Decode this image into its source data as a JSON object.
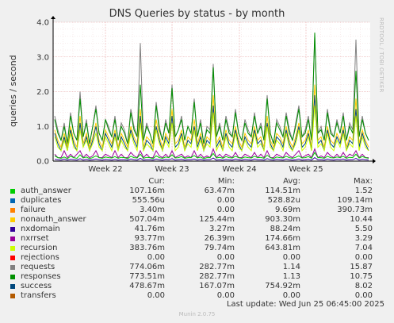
{
  "title": "DNS Queries by status - by month",
  "side_label": "RRDTOOL / TOBI OETIKER",
  "munin_version": "Munin 2.0.75",
  "last_update": "Last update: Wed Jun 25 06:45:00 2025",
  "legend_headers": {
    "cur": "Cur:",
    "min": "Min:",
    "avg": "Avg:",
    "max": "Max:"
  },
  "legend": [
    {
      "name": "auth_answer",
      "color": "#00cc00",
      "cur": "107.16m",
      "min": "63.47m",
      "avg": "114.51m",
      "max": "1.52"
    },
    {
      "name": "duplicates",
      "color": "#0066b3",
      "cur": "555.56u",
      "min": "0.00",
      "avg": "528.82u",
      "max": "109.14m"
    },
    {
      "name": "failure",
      "color": "#ff8000",
      "cur": "3.40m",
      "min": "0.00",
      "avg": "9.69m",
      "max": "390.73m"
    },
    {
      "name": "nonauth_answer",
      "color": "#ffcc00",
      "cur": "507.04m",
      "min": "125.44m",
      "avg": "903.30m",
      "max": "10.44"
    },
    {
      "name": "nxdomain",
      "color": "#330099",
      "cur": "41.76m",
      "min": "3.27m",
      "avg": "88.24m",
      "max": "5.50"
    },
    {
      "name": "nxrrset",
      "color": "#990099",
      "cur": "93.77m",
      "min": "26.39m",
      "avg": "174.66m",
      "max": "3.29"
    },
    {
      "name": "recursion",
      "color": "#ccff00",
      "cur": "383.76m",
      "min": "79.74m",
      "avg": "643.81m",
      "max": "7.04"
    },
    {
      "name": "rejections",
      "color": "#ff0000",
      "cur": "0.00",
      "min": "0.00",
      "avg": "0.00",
      "max": "0.00"
    },
    {
      "name": "requests",
      "color": "#808080",
      "cur": "774.06m",
      "min": "282.77m",
      "avg": "1.14",
      "max": "15.87"
    },
    {
      "name": "responses",
      "color": "#008f00",
      "cur": "773.51m",
      "min": "282.77m",
      "avg": "1.13",
      "max": "10.75"
    },
    {
      "name": "success",
      "color": "#00487d",
      "cur": "478.67m",
      "min": "167.07m",
      "avg": "754.92m",
      "max": "8.02"
    },
    {
      "name": "transfers",
      "color": "#b35a00",
      "cur": "0.00",
      "min": "0.00",
      "avg": "0.00",
      "max": "0.00"
    }
  ],
  "chart_data": {
    "type": "line",
    "title": "DNS Queries by status - by month",
    "ylabel": "queries / second",
    "ylim": [
      0,
      4.0
    ],
    "yticks": [
      "0.0",
      "1.0",
      "2.0",
      "3.0",
      "4.0"
    ],
    "xticks": [
      "Week 22",
      "Week 23",
      "Week 24",
      "Week 25"
    ],
    "grid": true,
    "series": [
      {
        "name": "requests",
        "color": "#808080",
        "values": [
          1.3,
          0.9,
          0.6,
          1.1,
          0.5,
          1.4,
          0.8,
          0.6,
          2.0,
          0.7,
          1.2,
          0.5,
          1.0,
          1.6,
          0.8,
          0.6,
          1.2,
          1.0,
          0.7,
          1.3,
          0.6,
          1.1,
          0.9,
          0.5,
          1.5,
          1.0,
          0.7,
          3.4,
          0.6,
          1.1,
          0.8,
          0.5,
          1.7,
          1.0,
          0.6,
          1.2,
          0.8,
          2.2,
          0.7,
          0.9,
          1.3,
          0.6,
          1.0,
          0.8,
          1.8,
          0.7,
          1.2,
          0.5,
          1.0,
          0.9,
          2.8,
          0.7,
          1.1,
          0.6,
          1.3,
          0.9,
          0.7,
          1.5,
          0.8,
          0.6,
          1.2,
          0.9,
          0.7,
          1.4,
          0.8,
          1.1,
          0.6,
          1.9,
          0.8,
          0.5,
          1.2,
          1.0,
          0.7,
          1.4,
          0.9,
          0.6,
          1.1,
          1.6,
          0.7,
          0.9,
          1.3,
          0.6,
          3.6,
          0.8,
          1.0,
          0.6,
          1.5,
          0.9,
          0.7,
          1.2,
          0.8,
          1.4,
          0.6,
          1.1,
          0.9,
          3.5,
          0.7,
          1.3,
          0.8,
          0.6
        ]
      },
      {
        "name": "responses",
        "color": "#008f00",
        "values": [
          1.2,
          0.8,
          0.6,
          1.0,
          0.5,
          1.3,
          0.8,
          0.6,
          1.8,
          0.7,
          1.1,
          0.5,
          1.0,
          1.5,
          0.8,
          0.6,
          1.2,
          0.9,
          0.7,
          1.2,
          0.6,
          1.0,
          0.8,
          0.5,
          1.4,
          0.9,
          0.7,
          2.2,
          0.6,
          1.0,
          0.8,
          0.5,
          1.6,
          0.9,
          0.6,
          1.1,
          0.8,
          2.1,
          0.7,
          0.9,
          1.2,
          0.6,
          1.0,
          0.8,
          1.7,
          0.7,
          1.1,
          0.5,
          0.9,
          0.8,
          2.7,
          0.7,
          1.0,
          0.6,
          1.2,
          0.8,
          0.7,
          1.4,
          0.8,
          0.6,
          1.1,
          0.8,
          0.7,
          1.3,
          0.8,
          1.0,
          0.6,
          1.8,
          0.8,
          0.5,
          1.1,
          0.9,
          0.7,
          1.3,
          0.8,
          0.6,
          1.0,
          1.5,
          0.7,
          0.8,
          1.2,
          0.6,
          3.7,
          0.8,
          0.9,
          0.6,
          1.4,
          0.8,
          0.7,
          1.1,
          0.8,
          1.3,
          0.6,
          1.0,
          0.8,
          2.6,
          0.7,
          1.2,
          0.8,
          0.6
        ]
      },
      {
        "name": "nonauth_answer",
        "color": "#ffcc00",
        "values": [
          0.9,
          0.6,
          0.4,
          0.8,
          0.4,
          1.0,
          0.6,
          0.4,
          1.3,
          0.5,
          0.8,
          0.4,
          0.7,
          1.1,
          0.6,
          0.4,
          0.9,
          0.7,
          0.5,
          0.9,
          0.4,
          0.8,
          0.6,
          0.4,
          1.0,
          0.7,
          0.5,
          1.5,
          0.4,
          0.7,
          0.6,
          0.4,
          1.2,
          0.7,
          0.4,
          0.8,
          0.6,
          1.5,
          0.5,
          0.6,
          0.9,
          0.4,
          0.7,
          0.6,
          1.2,
          0.5,
          0.8,
          0.4,
          0.7,
          0.6,
          1.9,
          0.5,
          0.7,
          0.4,
          0.9,
          0.6,
          0.5,
          1.0,
          0.6,
          0.4,
          0.8,
          0.6,
          0.5,
          1.0,
          0.6,
          0.7,
          0.4,
          1.3,
          0.6,
          0.4,
          0.8,
          0.7,
          0.5,
          1.0,
          0.6,
          0.4,
          0.7,
          1.1,
          0.5,
          0.6,
          0.9,
          0.4,
          2.2,
          0.6,
          0.7,
          0.4,
          1.0,
          0.6,
          0.5,
          0.8,
          0.6,
          1.0,
          0.4,
          0.7,
          0.6,
          1.8,
          0.5,
          0.9,
          0.6,
          0.4
        ]
      },
      {
        "name": "success",
        "color": "#00487d",
        "values": [
          0.8,
          0.5,
          0.3,
          0.7,
          0.3,
          0.9,
          0.5,
          0.3,
          1.1,
          0.4,
          0.7,
          0.3,
          0.6,
          1.0,
          0.5,
          0.3,
          0.8,
          0.6,
          0.4,
          0.8,
          0.3,
          0.7,
          0.5,
          0.3,
          0.9,
          0.6,
          0.4,
          1.3,
          0.3,
          0.6,
          0.5,
          0.3,
          1.0,
          0.6,
          0.3,
          0.7,
          0.5,
          1.3,
          0.4,
          0.5,
          0.8,
          0.3,
          0.6,
          0.5,
          1.0,
          0.4,
          0.7,
          0.3,
          0.6,
          0.5,
          1.6,
          0.4,
          0.6,
          0.3,
          0.8,
          0.5,
          0.4,
          0.9,
          0.5,
          0.3,
          0.7,
          0.5,
          0.4,
          0.9,
          0.5,
          0.6,
          0.3,
          1.1,
          0.5,
          0.3,
          0.7,
          0.6,
          0.4,
          0.9,
          0.5,
          0.3,
          0.6,
          1.0,
          0.4,
          0.5,
          0.8,
          0.3,
          1.9,
          0.5,
          0.6,
          0.3,
          0.9,
          0.5,
          0.4,
          0.7,
          0.5,
          0.9,
          0.3,
          0.6,
          0.5,
          1.5,
          0.4,
          0.8,
          0.5,
          0.3
        ]
      },
      {
        "name": "recursion",
        "color": "#ccff00",
        "values": [
          0.7,
          0.4,
          0.3,
          0.6,
          0.3,
          0.8,
          0.4,
          0.3,
          0.9,
          0.4,
          0.6,
          0.3,
          0.5,
          0.8,
          0.4,
          0.3,
          0.7,
          0.5,
          0.3,
          0.7,
          0.3,
          0.6,
          0.4,
          0.3,
          0.8,
          0.5,
          0.3,
          1.1,
          0.3,
          0.5,
          0.4,
          0.3,
          0.9,
          0.5,
          0.3,
          0.6,
          0.4,
          1.1,
          0.3,
          0.4,
          0.7,
          0.3,
          0.5,
          0.4,
          0.9,
          0.3,
          0.6,
          0.3,
          0.5,
          0.4,
          1.4,
          0.3,
          0.5,
          0.3,
          0.7,
          0.4,
          0.3,
          0.8,
          0.4,
          0.3,
          0.6,
          0.4,
          0.3,
          0.8,
          0.4,
          0.5,
          0.3,
          1.0,
          0.4,
          0.3,
          0.6,
          0.5,
          0.3,
          0.8,
          0.4,
          0.3,
          0.5,
          0.9,
          0.3,
          0.4,
          0.7,
          0.3,
          1.6,
          0.4,
          0.5,
          0.3,
          0.8,
          0.4,
          0.3,
          0.6,
          0.4,
          0.8,
          0.3,
          0.5,
          0.4,
          1.3,
          0.3,
          0.7,
          0.4,
          0.3
        ]
      },
      {
        "name": "nxrrset",
        "color": "#990099",
        "values": [
          0.2,
          0.1,
          0.1,
          0.3,
          0.1,
          0.2,
          0.1,
          0.2,
          0.3,
          0.1,
          0.2,
          0.1,
          0.15,
          0.3,
          0.1,
          0.1,
          0.2,
          0.15,
          0.1,
          0.3,
          0.1,
          0.2,
          0.1,
          0.1,
          0.25,
          0.15,
          0.1,
          0.3,
          0.1,
          0.2,
          0.1,
          0.1,
          0.3,
          0.15,
          0.1,
          0.2,
          0.1,
          0.3,
          0.1,
          0.15,
          0.2,
          0.1,
          0.15,
          0.1,
          0.3,
          0.1,
          0.2,
          0.1,
          0.15,
          0.1,
          0.35,
          0.1,
          0.2,
          0.1,
          0.2,
          0.15,
          0.1,
          0.25,
          0.1,
          0.1,
          0.2,
          0.15,
          0.1,
          0.25,
          0.1,
          0.2,
          0.1,
          0.3,
          0.1,
          0.1,
          0.2,
          0.15,
          0.1,
          0.25,
          0.15,
          0.1,
          0.2,
          0.3,
          0.1,
          0.15,
          0.2,
          0.1,
          0.35,
          0.1,
          0.15,
          0.1,
          0.25,
          0.15,
          0.1,
          0.2,
          0.1,
          0.25,
          0.1,
          0.2,
          0.15,
          0.3,
          0.1,
          0.2,
          0.1,
          0.1
        ]
      },
      {
        "name": "auth_answer",
        "color": "#00cc00",
        "values": [
          0.15,
          0.1,
          0.08,
          0.12,
          0.07,
          0.14,
          0.1,
          0.08,
          0.18,
          0.09,
          0.12,
          0.07,
          0.1,
          0.15,
          0.1,
          0.08,
          0.12,
          0.1,
          0.09,
          0.13,
          0.08,
          0.11,
          0.1,
          0.07,
          0.14,
          0.1,
          0.09,
          0.2,
          0.08,
          0.11,
          0.1,
          0.07,
          0.15,
          0.1,
          0.08,
          0.12,
          0.1,
          0.18,
          0.09,
          0.1,
          0.13,
          0.08,
          0.1,
          0.1,
          0.16,
          0.09,
          0.12,
          0.07,
          0.1,
          0.1,
          0.22,
          0.09,
          0.11,
          0.08,
          0.13,
          0.1,
          0.09,
          0.14,
          0.1,
          0.08,
          0.12,
          0.1,
          0.09,
          0.14,
          0.1,
          0.11,
          0.08,
          0.17,
          0.1,
          0.07,
          0.12,
          0.1,
          0.09,
          0.14,
          0.1,
          0.08,
          0.11,
          0.15,
          0.09,
          0.1,
          0.13,
          0.08,
          0.25,
          0.1,
          0.1,
          0.08,
          0.14,
          0.1,
          0.09,
          0.12,
          0.1,
          0.14,
          0.08,
          0.11,
          0.1,
          0.2,
          0.09,
          0.13,
          0.1,
          0.08
        ]
      },
      {
        "name": "nxdomain",
        "color": "#330099",
        "values": [
          0.05,
          0.04,
          0.03,
          0.06,
          0.03,
          0.05,
          0.04,
          0.03,
          0.07,
          0.03,
          0.05,
          0.03,
          0.04,
          0.06,
          0.04,
          0.03,
          0.05,
          0.04,
          0.03,
          0.05,
          0.03,
          0.04,
          0.04,
          0.03,
          0.06,
          0.04,
          0.03,
          0.08,
          0.03,
          0.04,
          0.04,
          0.03,
          0.06,
          0.04,
          0.03,
          0.05,
          0.04,
          0.07,
          0.03,
          0.04,
          0.05,
          0.03,
          0.04,
          0.04,
          0.06,
          0.03,
          0.05,
          0.03,
          0.04,
          0.04,
          0.09,
          0.03,
          0.04,
          0.03,
          0.05,
          0.04,
          0.03,
          0.06,
          0.04,
          0.03,
          0.05,
          0.04,
          0.03,
          0.06,
          0.04,
          0.04,
          0.03,
          0.07,
          0.04,
          0.03,
          0.05,
          0.04,
          0.03,
          0.06,
          0.04,
          0.03,
          0.04,
          0.06,
          0.03,
          0.04,
          0.05,
          0.03,
          0.1,
          0.04,
          0.04,
          0.03,
          0.06,
          0.04,
          0.03,
          0.05,
          0.04,
          0.06,
          0.03,
          0.04,
          0.04,
          0.08,
          0.03,
          0.05,
          0.04,
          0.03
        ]
      }
    ]
  }
}
